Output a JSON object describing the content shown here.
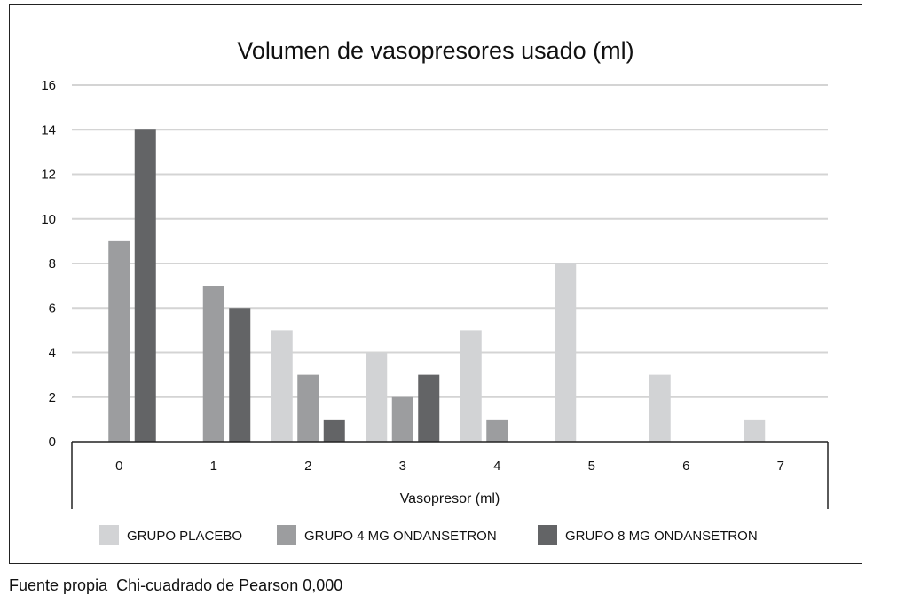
{
  "chart_data": {
    "type": "bar",
    "title": "Volumen de vasopresores usado (ml)",
    "xlabel": "Vasopresor (ml)",
    "ylabel": "",
    "categories": [
      "0",
      "1",
      "2",
      "3",
      "4",
      "5",
      "6",
      "7"
    ],
    "ylim": [
      0,
      16
    ],
    "yticks": [
      "0",
      "2",
      "4",
      "6",
      "8",
      "10",
      "12",
      "14",
      "16"
    ],
    "grid": true,
    "legend_position": "bottom",
    "series": [
      {
        "name": "GRUPO PLACEBO",
        "color": "#d2d3d5",
        "values": [
          0,
          0,
          5,
          4,
          5,
          8,
          3,
          1
        ]
      },
      {
        "name": "GRUPO 4 MG ONDANSETRON",
        "color": "#9c9d9f",
        "values": [
          9,
          7,
          3,
          2,
          1,
          0,
          0,
          0
        ]
      },
      {
        "name": "GRUPO 8 MG ONDANSETRON",
        "color": "#636466",
        "values": [
          14,
          6,
          1,
          3,
          0,
          0,
          0,
          0
        ]
      }
    ]
  },
  "footnote": "Fuente propia  Chi-cuadrado de Pearson 0,000"
}
